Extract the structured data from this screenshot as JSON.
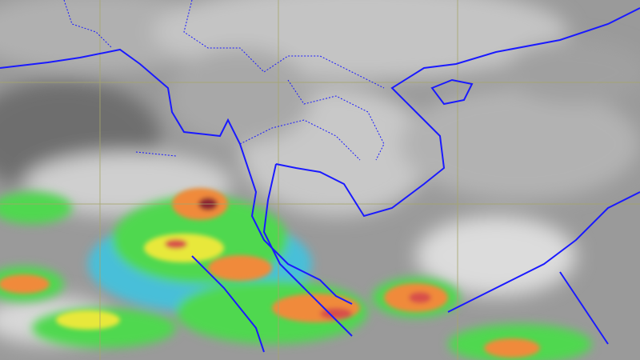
{
  "map": {
    "type": "satellite-infrared-enhanced",
    "colors": {
      "cloud_base": "#b8b8b8",
      "cloud_dark": "#6e6e6e",
      "coastline": "#1a1aff",
      "graticule": "#a6a66a",
      "enh_cyan": "#35c8e8",
      "enh_green": "#4fd84f",
      "enh_yellow": "#e8e83a",
      "enh_orange": "#f08a3a",
      "enh_red": "#d8504a",
      "enh_darkred": "#8a2030"
    }
  }
}
